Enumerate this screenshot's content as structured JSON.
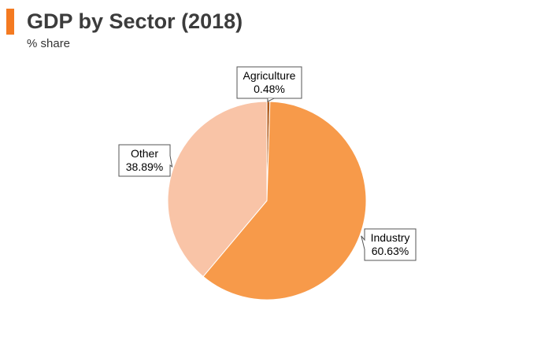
{
  "chart": {
    "title": "GDP by Sector (2018)",
    "subtitle": "% share"
  },
  "colors": {
    "accent": "#f47a21",
    "title_text": "#3c3c3c",
    "industry": "#f79a4a",
    "other": "#f9c4a7",
    "agriculture": "#b05a1a",
    "callout_border": "#555555"
  },
  "chart_data": {
    "type": "pie",
    "title": "GDP by Sector (2018)",
    "subtitle": "% share",
    "slices": [
      {
        "label": "Agriculture",
        "value": 0.48,
        "display": "0.48%"
      },
      {
        "label": "Industry",
        "value": 60.63,
        "display": "60.63%"
      },
      {
        "label": "Other",
        "value": 38.89,
        "display": "38.89%"
      }
    ],
    "start": "12 o'clock",
    "direction": "clockwise",
    "legend": "none",
    "data_labels": "callouts"
  }
}
